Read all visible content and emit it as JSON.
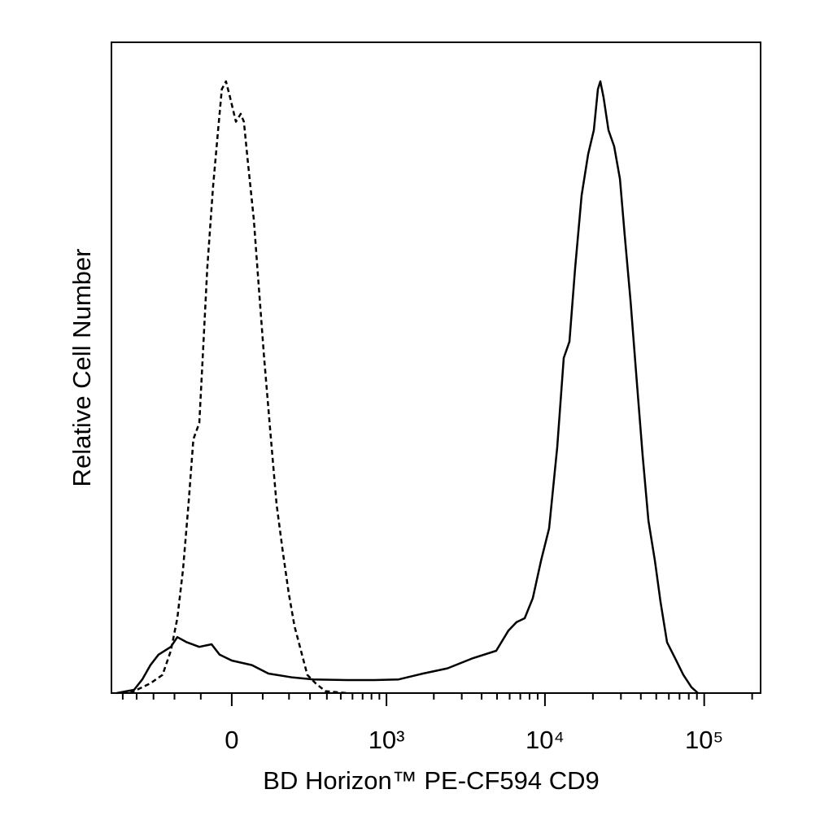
{
  "chart_data": {
    "type": "line",
    "xscale": "biexponential",
    "xlabel": "BD Horizon™ PE-CF594 CD9",
    "ylabel": "Relative Cell Number",
    "xlim": [
      -596,
      226000
    ],
    "ylim": [
      0,
      100
    ],
    "xticks": [
      0,
      {
        "value": 1000,
        "label": "10³"
      },
      {
        "value": 10000,
        "label": "10⁴"
      },
      {
        "value": 100000,
        "label": "10⁵"
      }
    ],
    "xminorticks": [
      -500,
      -400,
      -300,
      -200,
      -100,
      100,
      200,
      300,
      400,
      500,
      600,
      700,
      800,
      900,
      2000,
      3000,
      4000,
      5000,
      6000,
      7000,
      8000,
      9000,
      20000,
      30000,
      40000,
      50000,
      60000,
      70000,
      80000,
      90000,
      200000
    ],
    "series": [
      {
        "color": "#000000",
        "linestyle": "dashed",
        "x": [
          -445,
          -317,
          -254,
          -216,
          -188,
          -165,
          -144,
          -126,
          -105,
          -92,
          -78,
          -59,
          -43,
          -31,
          -18,
          -5,
          13,
          28,
          38,
          51,
          70,
          86,
          105,
          129,
          150,
          175,
          199,
          224,
          254,
          286,
          331,
          390,
          550
        ],
        "values": [
          0,
          1.5,
          2.8,
          6.5,
          11.5,
          19,
          29,
          39,
          41.5,
          52.8,
          65.3,
          77.8,
          86.5,
          92.8,
          94,
          91.5,
          87.8,
          89,
          87.8,
          81.5,
          72.8,
          62.8,
          51.5,
          39,
          29,
          21.5,
          15.3,
          10.3,
          6.5,
          2.8,
          1.5,
          0.3,
          0
        ]
      },
      {
        "color": "#000000",
        "linestyle": "solid",
        "x": [
          -550,
          -417,
          -364,
          -317,
          -274,
          -216,
          -188,
          -150,
          -105,
          -64,
          -38,
          0,
          64,
          120,
          216,
          317,
          550,
          833,
          1196,
          1709,
          2436,
          3471,
          4943,
          5895,
          6631,
          7459,
          8390,
          9440,
          10616,
          11945,
          13122,
          14245,
          15476,
          17000,
          18673,
          20272,
          21503,
          22270,
          23350,
          25067,
          27216,
          29570,
          31720,
          34452,
          37400,
          41083,
          44636,
          49021,
          53212,
          58460,
          65783,
          73958,
          83203,
          91400
        ],
        "values": [
          0,
          0.5,
          2.1,
          4.3,
          5.9,
          7.1,
          8.6,
          7.8,
          7.1,
          7.5,
          5.9,
          5,
          4.3,
          3,
          2.4,
          2.1,
          2,
          2,
          2.1,
          3,
          3.8,
          5.3,
          6.5,
          9.6,
          10.9,
          11.5,
          14.6,
          20.3,
          25.3,
          37.8,
          51.5,
          54,
          65.3,
          76.5,
          82.8,
          86.5,
          92.8,
          94,
          91.5,
          86.5,
          84,
          79,
          70.3,
          60.3,
          49,
          36.5,
          26.5,
          20.3,
          14,
          7.8,
          5.3,
          2.8,
          0.9,
          0
        ]
      }
    ]
  }
}
